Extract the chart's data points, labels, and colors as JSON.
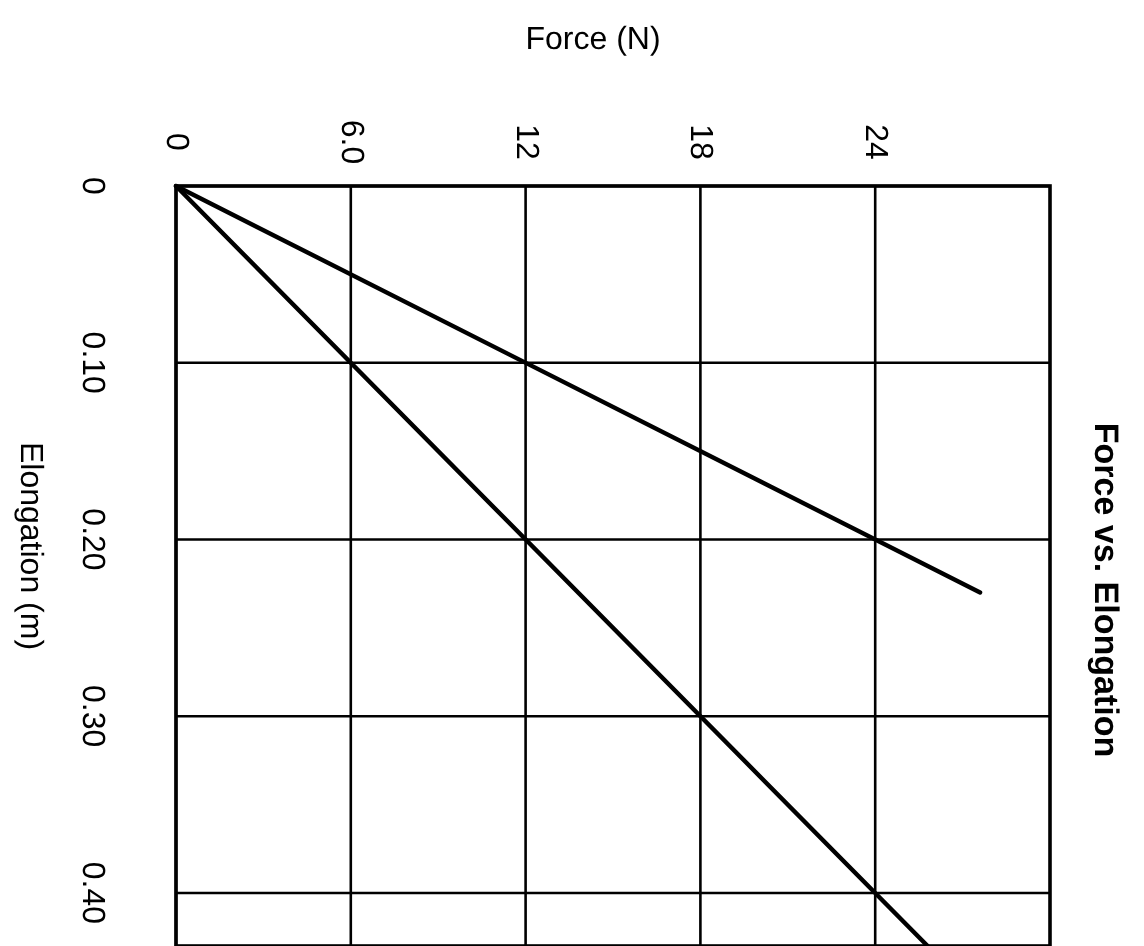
{
  "chart_data": {
    "type": "line",
    "title": "Force vs. Elongation",
    "xlabel": "Force (N)",
    "ylabel": "Elongation (m)",
    "xlim": [
      0,
      30
    ],
    "ylim": [
      0.43,
      0
    ],
    "xticks": [
      0,
      {
        "value": 6,
        "label": "6.0"
      },
      12,
      18,
      24
    ],
    "yticks": [
      0,
      {
        "value": 0.1,
        "label": "0.10"
      },
      {
        "value": 0.2,
        "label": "0.20"
      },
      {
        "value": 0.3,
        "label": "0.30"
      },
      {
        "value": 0.4,
        "label": "0.40"
      }
    ],
    "grid": true,
    "series": [
      {
        "color": "#000000",
        "x": [
          0,
          27.6
        ],
        "values": [
          0,
          0.23
        ]
      },
      {
        "color": "#000000",
        "x": [
          0,
          25.8
        ],
        "values": [
          0,
          0.43
        ]
      }
    ]
  }
}
